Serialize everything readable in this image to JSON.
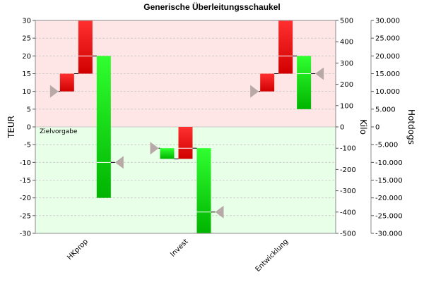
{
  "chart_data": {
    "type": "bar",
    "title": "Generische Überleitungsschaukel",
    "categories": [
      "HKprop",
      "Invest",
      "Entwicklung"
    ],
    "axes": {
      "left": {
        "label": "TEUR",
        "ylim": [
          -30,
          30
        ],
        "step": 5,
        "ticks": [
          "-30",
          "-25",
          "-20",
          "-15",
          "-10",
          "-5",
          "0",
          "5",
          "10",
          "15",
          "20",
          "25",
          "30"
        ]
      },
      "right1": {
        "label": "Kilo",
        "ylim": [
          -500,
          500
        ],
        "step": 100,
        "ticks": [
          "-500",
          "-400",
          "-300",
          "-200",
          "-100",
          "0",
          "100",
          "200",
          "300",
          "400",
          "500"
        ]
      },
      "right2": {
        "label": "Hotdogs",
        "ylim": [
          -30000,
          30000
        ],
        "step": 5000,
        "ticks": [
          "-30.000",
          "-25.000",
          "-20.000",
          "-15.000",
          "-10.000",
          "-5.000",
          "0",
          "5.000",
          "10.000",
          "15.000",
          "20.000",
          "25.000",
          "30.000"
        ]
      }
    },
    "grid": true,
    "background_regions": [
      {
        "from": 0,
        "to": 30,
        "color": "#ffe6e6"
      },
      {
        "from": -30,
        "to": 0,
        "color": "#e8ffe8"
      }
    ],
    "annotation": {
      "text": "Zielvorgabe",
      "y": 0
    },
    "groups": [
      {
        "category": "HKprop",
        "start": 10,
        "steps": [
          {
            "from": 10,
            "to": 15,
            "color": "red"
          },
          {
            "from": 15,
            "to": 30,
            "color": "red",
            "marker": 20
          },
          {
            "from": 20,
            "to": -20,
            "color": "green",
            "marker": -10
          }
        ],
        "end": -10
      },
      {
        "category": "Invest",
        "start": -6,
        "steps": [
          {
            "from": -6,
            "to": -9,
            "color": "green"
          },
          {
            "from": -9,
            "to": 0,
            "color": "red",
            "marker": -6
          },
          {
            "from": -6,
            "to": -30,
            "color": "green",
            "marker": -24
          }
        ],
        "end": -24
      },
      {
        "category": "Entwicklung",
        "start": 10,
        "steps": [
          {
            "from": 10,
            "to": 15,
            "color": "red"
          },
          {
            "from": 15,
            "to": 30,
            "color": "red",
            "marker": 20
          },
          {
            "from": 20,
            "to": 5,
            "color": "green",
            "marker": 15
          }
        ],
        "end": 15
      }
    ],
    "colors": {
      "red_light": "#ff4040",
      "red_dark": "#c80000",
      "green_light": "#40ff40",
      "green_dark": "#00b000",
      "marker": "#b8a8a8",
      "grid": "#c8c8c8",
      "positive_bg": "#ffe6e6",
      "negative_bg": "#e8ffe8"
    }
  }
}
